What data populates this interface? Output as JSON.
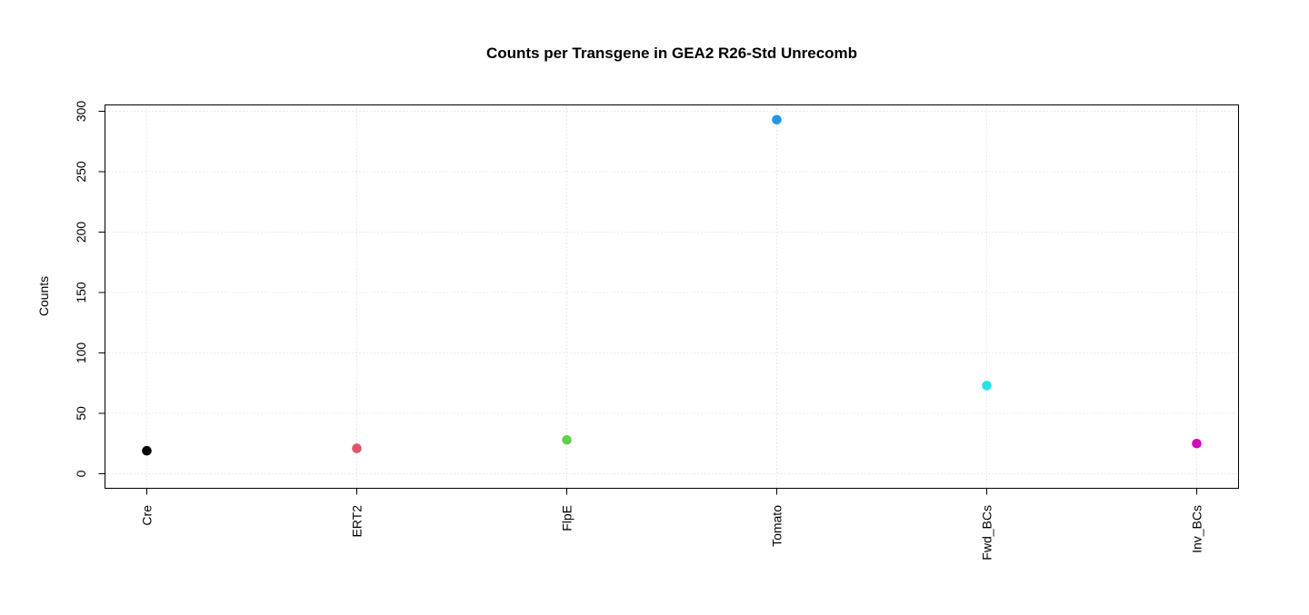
{
  "chart_data": {
    "type": "scatter",
    "title": "Counts per Transgene in GEA2 R26-Std Unrecomb",
    "xlabel": "",
    "ylabel": "Counts",
    "categories": [
      "Cre",
      "ERT2",
      "FlpE",
      "Tomato",
      "Fwd_BCs",
      "Inv_BCs"
    ],
    "values": [
      19,
      21,
      28,
      293,
      73,
      25
    ],
    "point_colors": [
      "#000000",
      "#DF536B",
      "#61D04F",
      "#2297E6",
      "#28E2E5",
      "#CD0BBC"
    ],
    "y_ticks": [
      0,
      50,
      100,
      150,
      200,
      250,
      300
    ],
    "ylim": [
      -12,
      306
    ],
    "grid": true
  }
}
